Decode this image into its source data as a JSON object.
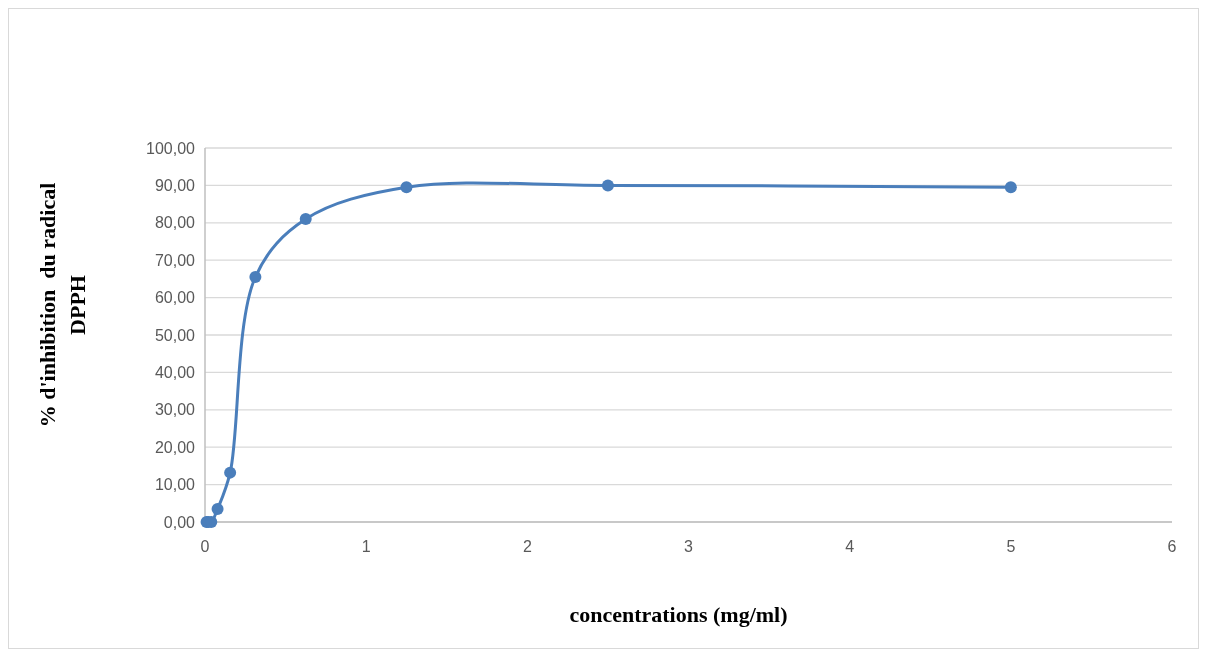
{
  "chart_data": {
    "type": "line",
    "xlabel": "concentrations (mg/ml)",
    "ylabel": "% d'inhibition  du radical\nDPPH",
    "x": [
      0.0098,
      0.0195,
      0.039,
      0.078,
      0.156,
      0.3125,
      0.625,
      1.25,
      2.5,
      5
    ],
    "series": [
      {
        "color": "#4a7ebb",
        "values": [
          0,
          0,
          0,
          3.5,
          13.2,
          65.5,
          81,
          89.5,
          90,
          89.5
        ]
      }
    ],
    "xlim": [
      0,
      6
    ],
    "xticks": [
      0,
      1,
      2,
      3,
      4,
      5,
      6
    ],
    "ylim": [
      0,
      100
    ],
    "yticks": [
      {
        "value": 0,
        "label": "0,00"
      },
      {
        "value": 10,
        "label": "10,00"
      },
      {
        "value": 20,
        "label": "20,00"
      },
      {
        "value": 30,
        "label": "30,00"
      },
      {
        "value": 40,
        "label": "40,00"
      },
      {
        "value": 50,
        "label": "50,00"
      },
      {
        "value": 60,
        "label": "60,00"
      },
      {
        "value": 70,
        "label": "70,00"
      },
      {
        "value": 80,
        "label": "80,00"
      },
      {
        "value": 90,
        "label": "90,00"
      },
      {
        "value": 100,
        "label": "100,00"
      }
    ],
    "grid": "y",
    "marker": "circle",
    "line_style": "solid"
  }
}
